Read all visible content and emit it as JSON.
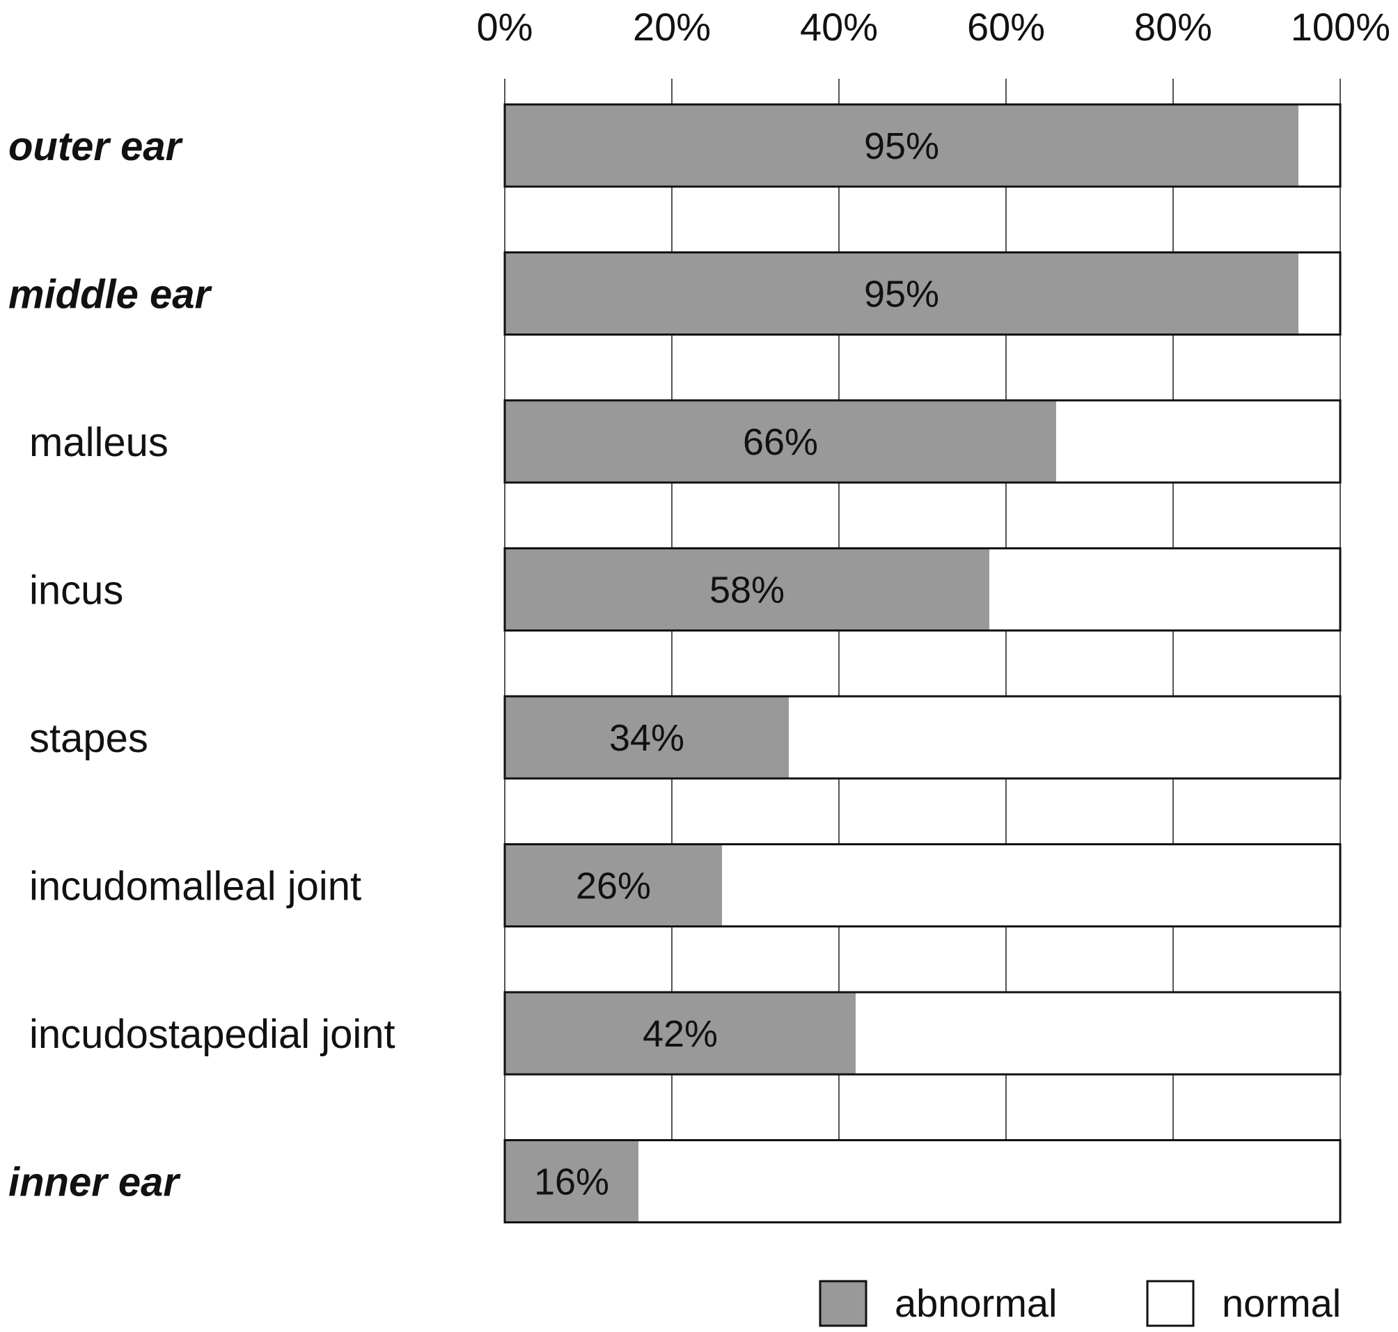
{
  "chart_data": {
    "type": "bar",
    "orientation": "horizontal",
    "stacked": true,
    "x_ticks": [
      "0%",
      "20%",
      "40%",
      "60%",
      "80%",
      "100%"
    ],
    "xlim": [
      0,
      100
    ],
    "categories": [
      {
        "label": "outer ear",
        "bold_italic": true,
        "indent": false
      },
      {
        "label": "middle ear",
        "bold_italic": true,
        "indent": false
      },
      {
        "label": "malleus",
        "bold_italic": false,
        "indent": true
      },
      {
        "label": "incus",
        "bold_italic": false,
        "indent": true
      },
      {
        "label": "stapes",
        "bold_italic": false,
        "indent": true
      },
      {
        "label": "incudomalleal joint",
        "bold_italic": false,
        "indent": true
      },
      {
        "label": "incudostapedial joint",
        "bold_italic": false,
        "indent": true
      },
      {
        "label": "inner ear",
        "bold_italic": true,
        "indent": false
      }
    ],
    "series": [
      {
        "name": "abnormal",
        "color": "#999999",
        "values": [
          95,
          95,
          66,
          58,
          34,
          26,
          42,
          16
        ]
      },
      {
        "name": "normal",
        "color": "#ffffff",
        "values": [
          5,
          5,
          34,
          42,
          66,
          74,
          58,
          84
        ]
      }
    ],
    "data_labels": [
      "95%",
      "95%",
      "66%",
      "58%",
      "34%",
      "26%",
      "42%",
      "16%"
    ],
    "grid": true,
    "legend_position": "bottom-right"
  }
}
